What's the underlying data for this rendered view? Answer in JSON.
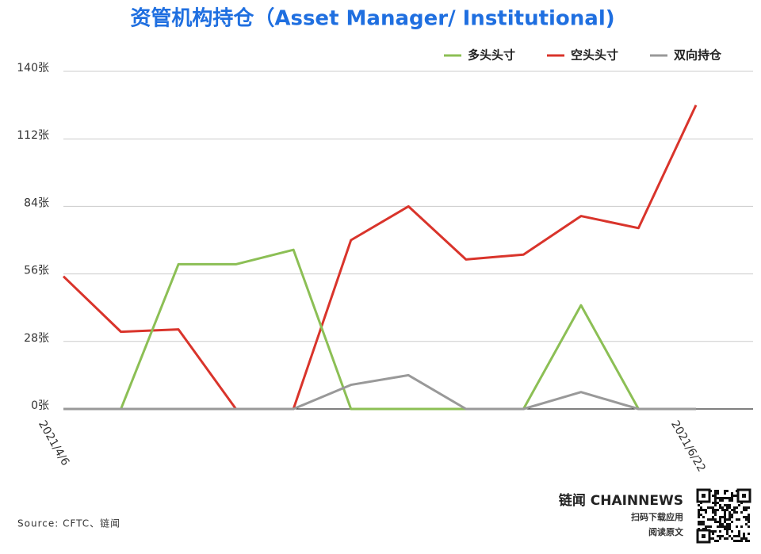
{
  "chart_data": {
    "type": "line",
    "title": "资管机构持仓（Asset Manager/ Institutional)",
    "categories": [
      "2021/4/6",
      null,
      null,
      null,
      null,
      null,
      null,
      null,
      null,
      null,
      null,
      "2021/6/22"
    ],
    "series": [
      {
        "name": "多头头寸",
        "color": "#8cbf55",
        "values": [
          0,
          0,
          60,
          60,
          66,
          0,
          0,
          0,
          0,
          43,
          0,
          0
        ]
      },
      {
        "name": "空头头寸",
        "color": "#d9342b",
        "values": [
          55,
          32,
          33,
          0,
          0,
          70,
          84,
          62,
          64,
          80,
          75,
          126
        ]
      },
      {
        "name": "双向持仓",
        "color": "#999999",
        "values": [
          0,
          0,
          0,
          0,
          0,
          10,
          14,
          0,
          0,
          7,
          0,
          0
        ]
      }
    ],
    "ylim": [
      0,
      140
    ],
    "yticks": [
      {
        "value": 0,
        "label": "0张"
      },
      {
        "value": 28,
        "label": "28张"
      },
      {
        "value": 56,
        "label": "56张"
      },
      {
        "value": 84,
        "label": "84张"
      },
      {
        "value": 112,
        "label": "112张"
      },
      {
        "value": 140,
        "label": "140张"
      }
    ],
    "grid": true,
    "legend": "top-right",
    "source": "Source: CFTC、链闻",
    "brand": "链闻 CHAINNEWS",
    "brand_line1": "扫码下载应用",
    "brand_line2": "阅读原文"
  }
}
